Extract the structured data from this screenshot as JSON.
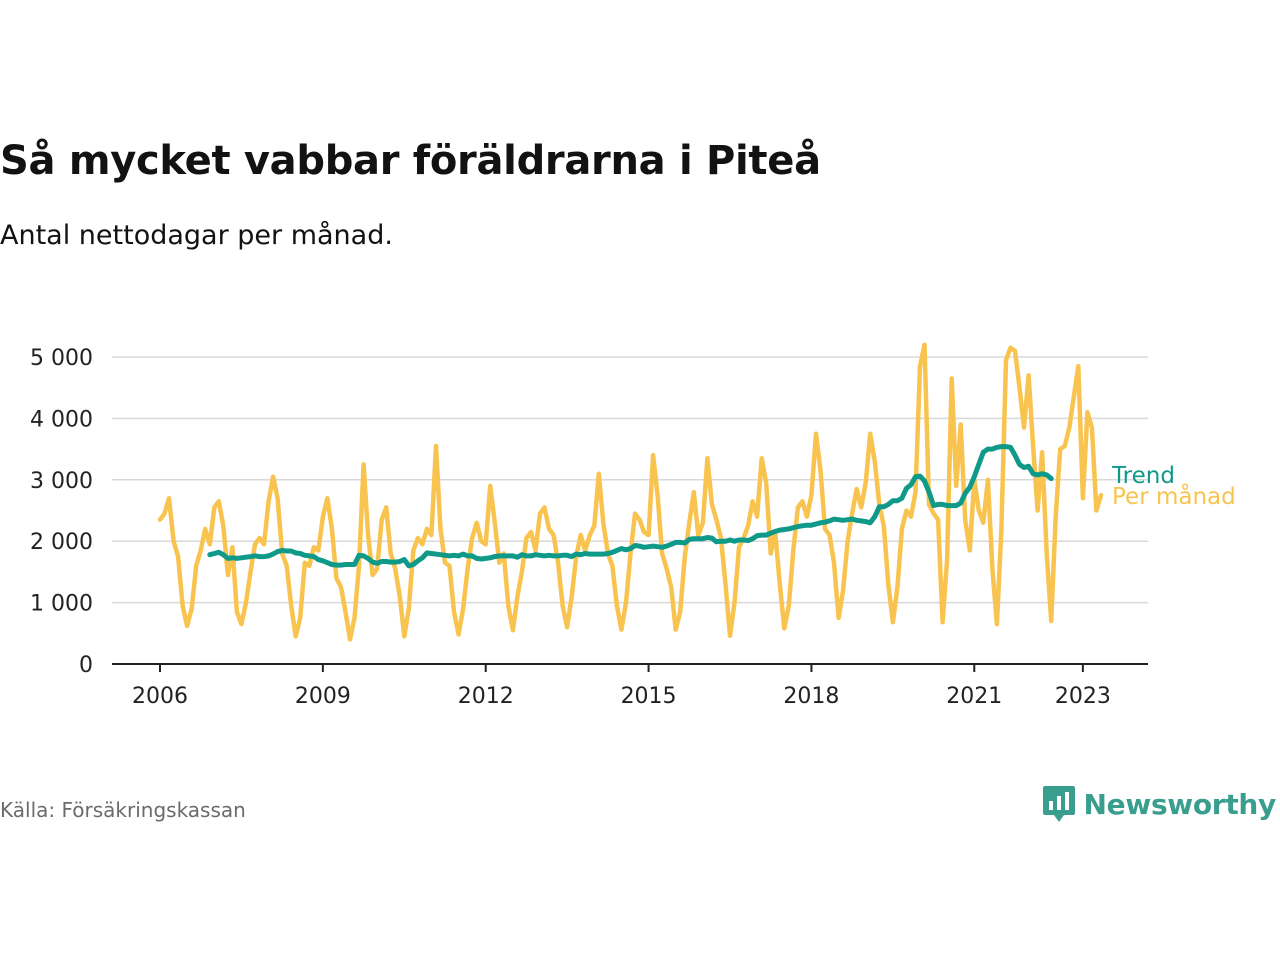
{
  "title": "Så mycket vabbar föräldrarna i Piteå",
  "subtitle": "Antal nettodagar per månad.",
  "source": "Källa: Försäkringskassan",
  "brand": "Newsworthy",
  "colors": {
    "monthly": "#f9c34f",
    "trend": "#0f9988",
    "grid": "#d9d9d9",
    "axis": "#222222",
    "brand": "#3a9e8f"
  },
  "chart_data": {
    "type": "line",
    "x_unit": "month",
    "xlim": [
      "2006-01",
      "2023-07"
    ],
    "ylim": [
      0,
      5200
    ],
    "grid": true,
    "y_ticks": [
      0,
      1000,
      2000,
      3000,
      4000,
      5000
    ],
    "y_tick_labels": [
      "0",
      "1 000",
      "2 000",
      "3 000",
      "4 000",
      "5 000"
    ],
    "x_ticks": [
      "2006-01",
      "2009-01",
      "2012-01",
      "2015-01",
      "2018-01",
      "2021-01",
      "2023-01"
    ],
    "x_tick_labels": [
      "2006",
      "2009",
      "2012",
      "2015",
      "2018",
      "2021",
      "2023"
    ],
    "legend": "end-of-line labels",
    "series": [
      {
        "name": "Per månad",
        "color_key": "monthly",
        "start": "2006-01",
        "values": [
          2350,
          2450,
          2700,
          2000,
          1750,
          950,
          620,
          900,
          1600,
          1850,
          2200,
          1950,
          2550,
          2650,
          2250,
          1450,
          1900,
          850,
          650,
          1000,
          1500,
          1950,
          2050,
          1950,
          2650,
          3050,
          2700,
          1800,
          1600,
          950,
          450,
          750,
          1650,
          1600,
          1900,
          1850,
          2400,
          2700,
          2200,
          1400,
          1250,
          850,
          400,
          750,
          1600,
          3250,
          2100,
          1450,
          1550,
          2350,
          2550,
          1800,
          1550,
          1100,
          450,
          900,
          1850,
          2050,
          1950,
          2200,
          2100,
          3550,
          2200,
          1650,
          1600,
          850,
          480,
          900,
          1550,
          2050,
          2300,
          2000,
          1950,
          2900,
          2300,
          1650,
          1800,
          950,
          550,
          1100,
          1500,
          2050,
          2150,
          1850,
          2450,
          2550,
          2200,
          2100,
          1650,
          950,
          600,
          1100,
          1750,
          2100,
          1850,
          2100,
          2250,
          3100,
          2300,
          1800,
          1600,
          950,
          560,
          1000,
          1800,
          2450,
          2350,
          2150,
          2100,
          3400,
          2750,
          1800,
          1550,
          1250,
          560,
          850,
          1750,
          2300,
          2800,
          2100,
          2300,
          3350,
          2600,
          2350,
          2050,
          1300,
          460,
          1000,
          1900,
          2050,
          2250,
          2650,
          2400,
          3350,
          2950,
          1800,
          2150,
          1300,
          580,
          950,
          1850,
          2550,
          2650,
          2400,
          2750,
          3750,
          3150,
          2200,
          2100,
          1650,
          750,
          1200,
          2000,
          2450,
          2850,
          2550,
          2950,
          3750,
          3300,
          2600,
          2250,
          1300,
          680,
          1250,
          2200,
          2500,
          2400,
          2800,
          4850,
          5200,
          2600,
          2450,
          2350,
          680,
          1700,
          4650,
          2900,
          3900,
          2350,
          1850,
          3000,
          2500,
          2300,
          3000,
          1550,
          650,
          2200,
          4950,
          5150,
          5100,
          4500,
          3850,
          4700,
          3550,
          2500,
          3450,
          1800,
          700,
          2400,
          3500,
          3550,
          3850,
          4350,
          4850,
          2700,
          4100,
          3850,
          2500,
          2750
        ]
      },
      {
        "name": "Trend",
        "color_key": "trend",
        "start": "2006-12",
        "values": [
          1780,
          1800,
          1820,
          1780,
          1720,
          1730,
          1720,
          1730,
          1740,
          1750,
          1760,
          1750,
          1750,
          1760,
          1790,
          1830,
          1850,
          1840,
          1840,
          1810,
          1800,
          1770,
          1760,
          1750,
          1700,
          1680,
          1650,
          1620,
          1610,
          1610,
          1620,
          1620,
          1620,
          1770,
          1760,
          1720,
          1660,
          1640,
          1670,
          1670,
          1660,
          1660,
          1670,
          1700,
          1600,
          1620,
          1680,
          1730,
          1810,
          1800,
          1790,
          1780,
          1770,
          1760,
          1770,
          1760,
          1790,
          1760,
          1760,
          1720,
          1710,
          1720,
          1730,
          1750,
          1760,
          1760,
          1760,
          1760,
          1740,
          1780,
          1760,
          1760,
          1780,
          1770,
          1760,
          1770,
          1760,
          1760,
          1770,
          1770,
          1750,
          1790,
          1780,
          1800,
          1790,
          1790,
          1790,
          1790,
          1800,
          1820,
          1850,
          1880,
          1860,
          1880,
          1930,
          1920,
          1900,
          1910,
          1920,
          1910,
          1900,
          1920,
          1950,
          1980,
          1980,
          1970,
          2030,
          2040,
          2040,
          2040,
          2060,
          2050,
          1990,
          2000,
          2000,
          2020,
          2000,
          2020,
          2020,
          2010,
          2040,
          2090,
          2100,
          2100,
          2130,
          2160,
          2180,
          2190,
          2200,
          2220,
          2240,
          2250,
          2260,
          2260,
          2280,
          2300,
          2310,
          2330,
          2360,
          2350,
          2340,
          2350,
          2360,
          2340,
          2330,
          2320,
          2300,
          2400,
          2560,
          2560,
          2600,
          2660,
          2660,
          2700,
          2860,
          2920,
          3050,
          3060,
          2980,
          2800,
          2580,
          2600,
          2600,
          2580,
          2580,
          2580,
          2620,
          2780,
          2880,
          3050,
          3250,
          3450,
          3500,
          3500,
          3530,
          3540,
          3540,
          3530,
          3400,
          3250,
          3200,
          3220,
          3100,
          3080,
          3100,
          3080,
          3020
        ]
      }
    ]
  }
}
